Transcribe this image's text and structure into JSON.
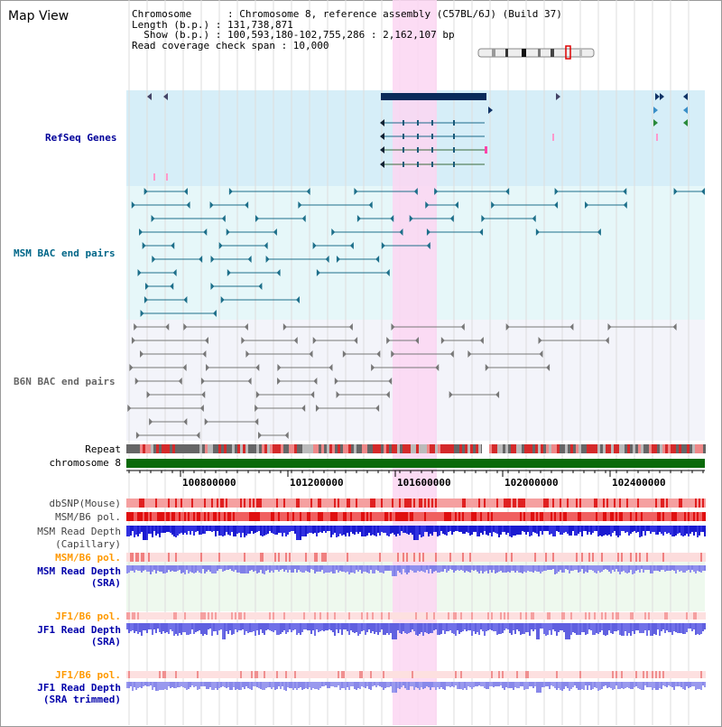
{
  "title": "Map View",
  "info": {
    "chromosome_line": "Chromosome      : Chromosome 8, reference assembly (C57BL/6J) (Build 37)",
    "length_line": "Length (b.p.) : 131,738,871",
    "show_line": "  Show (b.p.) : 100,593,180-102,755,286 : 2,162,107 bp",
    "coverage_line": "Read coverage check span : 10,000"
  },
  "labels": {
    "refseq": "RefSeq Genes",
    "msm_bac": "MSM BAC end pairs",
    "b6n_bac": "B6N BAC end pairs",
    "repeat": "Repeat",
    "chromosome": "chromosome 8",
    "dbsnp": "dbSNP(Mouse)",
    "msm_b6_pol": "MSM/B6 pol.",
    "msm_depth_cap_1": "MSM Read Depth",
    "msm_depth_cap_2": "(Capillary)",
    "msm_b6_pol_2": "MSM/B6 pol.",
    "msm_depth_sra_1": "MSM Read Depth",
    "msm_depth_sra_2": "(SRA)",
    "jf1_b6_pol": "JF1/B6 pol.",
    "jf1_depth_1": "JF1 Read Depth",
    "jf1_depth_2": "(SRA)",
    "jf1_b6_pol_2": "JF1/B6 pol.",
    "jf1_trim_1": "JF1 Read Depth",
    "jf1_trim_2": "(SRA trimmed)"
  },
  "axis": {
    "ticks": [
      "100800000",
      "101200000",
      "101600000",
      "102000000",
      "102400000"
    ]
  },
  "colors": {
    "refseq_bg": "#d6eef8",
    "msm_bg": "#e6f7f9",
    "highlight": "#fbd6f2",
    "refseq_text": "#000099",
    "msm_text": "#006688",
    "b6n_text": "#666666",
    "pol_text": "#ff9900",
    "depth_text": "#0000aa"
  }
}
